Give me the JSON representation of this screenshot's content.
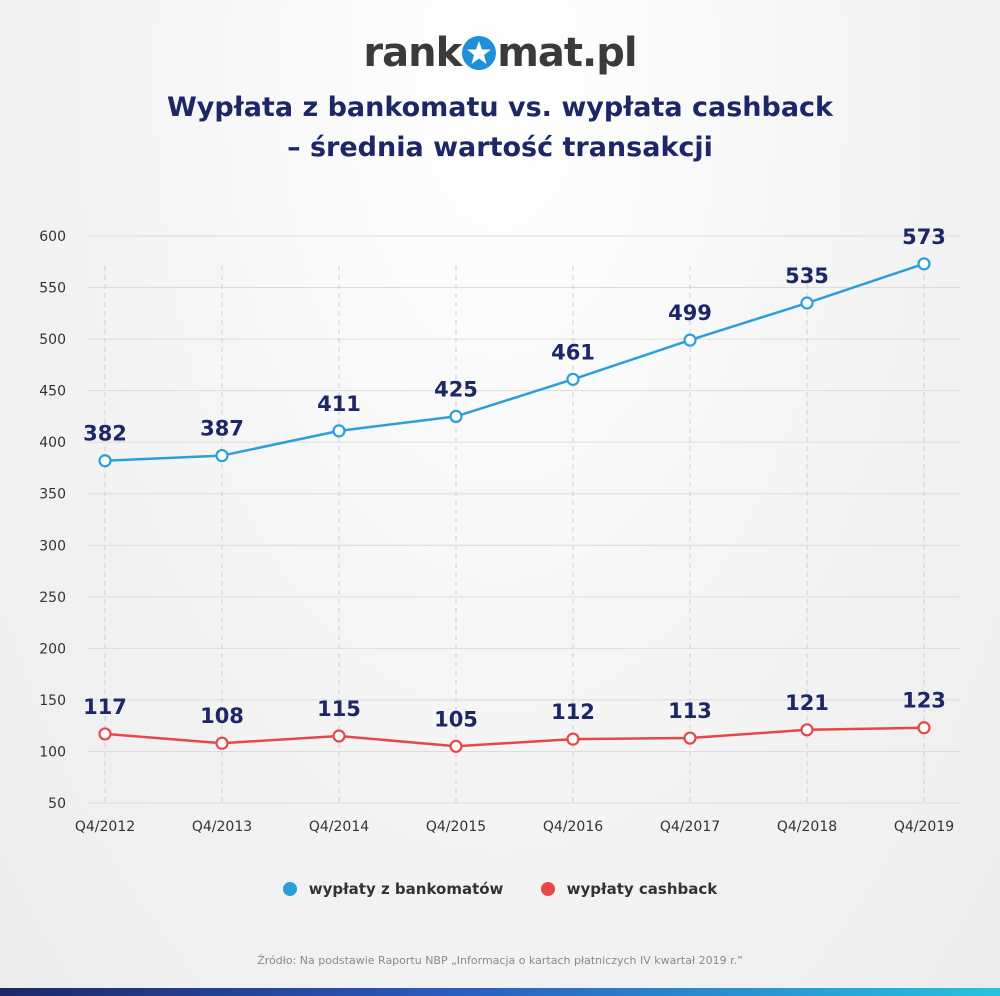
{
  "brand": {
    "name_pre": "rank",
    "name_post": "mat.pl",
    "brand_color": "#1f8fd8"
  },
  "title": {
    "line1": "Wypłata z bankomatu vs. wypłata cashback",
    "line2": "– średnia wartość transakcji"
  },
  "chart_data": {
    "type": "line",
    "categories": [
      "Q4/2012",
      "Q4/2013",
      "Q4/2014",
      "Q4/2015",
      "Q4/2016",
      "Q4/2017",
      "Q4/2018",
      "Q4/2019"
    ],
    "series": [
      {
        "name": "wypłaty z bankomatów",
        "color": "#2c9fd9",
        "values": [
          382,
          387,
          411,
          425,
          461,
          499,
          535,
          573
        ]
      },
      {
        "name": "wypłaty cashback",
        "color": "#e8474a",
        "values": [
          117,
          108,
          115,
          105,
          112,
          113,
          121,
          123
        ]
      }
    ],
    "yticks": [
      50,
      100,
      150,
      200,
      250,
      300,
      350,
      400,
      450,
      500,
      550,
      600
    ],
    "ylim": [
      50,
      600
    ],
    "grid": true,
    "legend_position": "bottom"
  },
  "source": "Źródło: Na podstawie Raportu NBP „Informacja o kartach płatniczych IV kwartał 2019 r.”"
}
